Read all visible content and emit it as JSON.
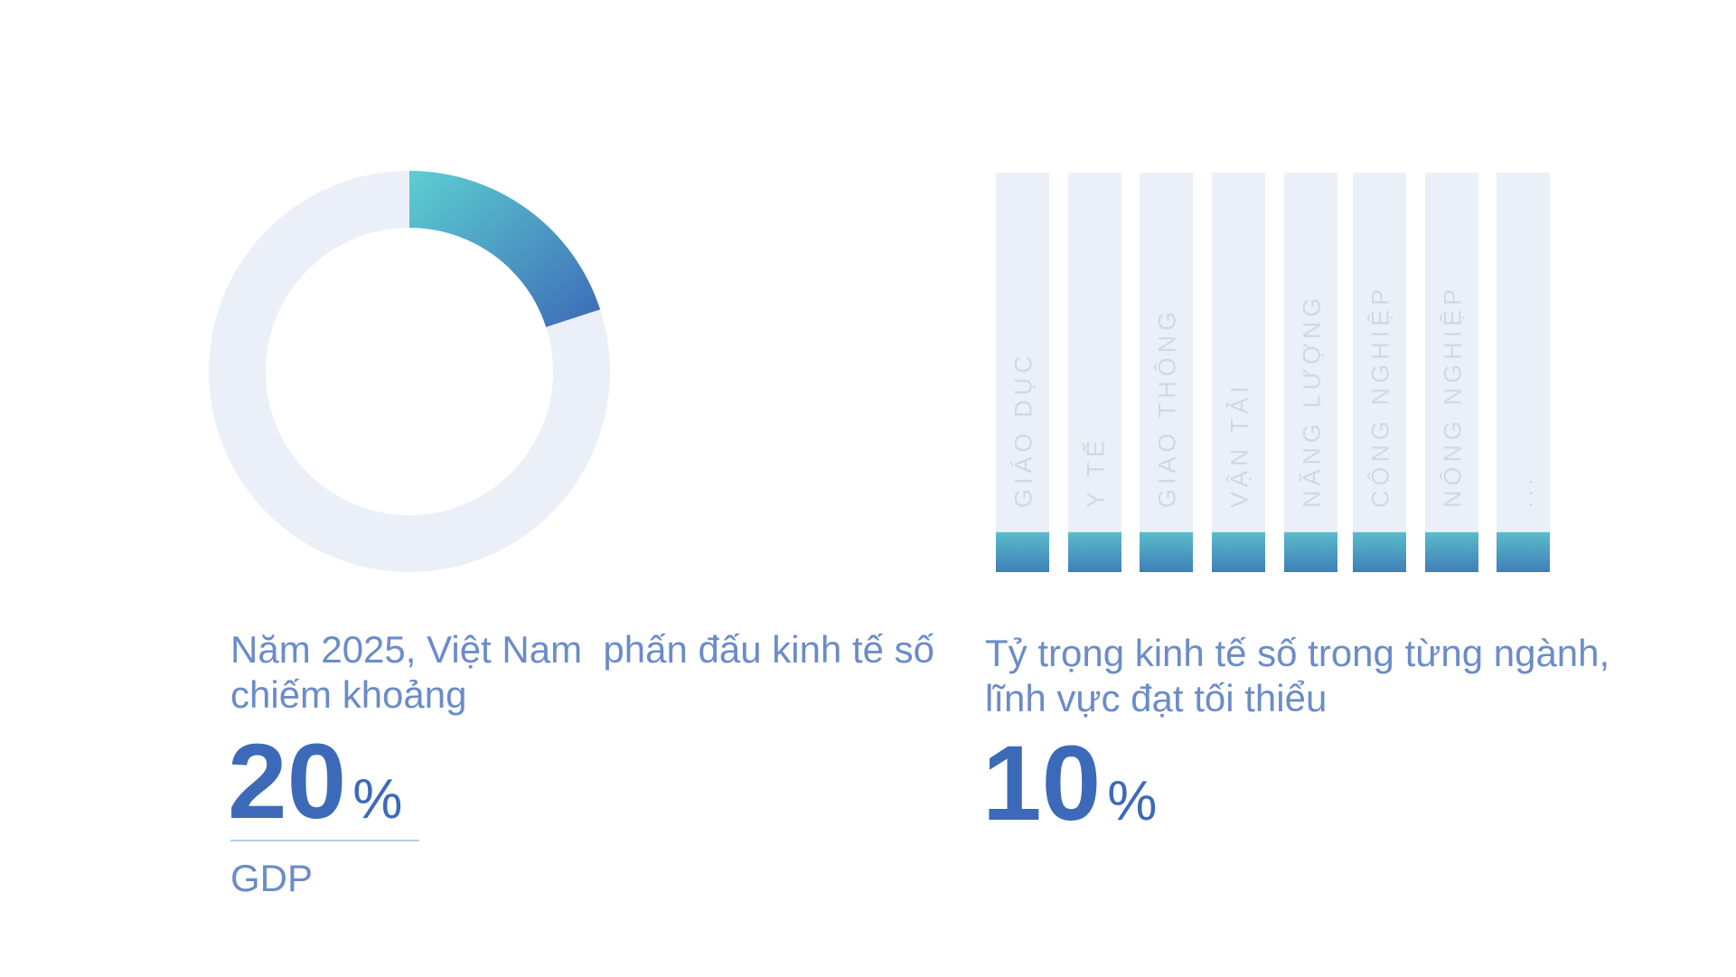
{
  "chart_data": [
    {
      "type": "donut",
      "description": [
        "Năm 2025, Việt Nam  phấn đấu kinh tế số",
        "chiếm khoảng"
      ],
      "values": [
        20
      ],
      "unit": "%",
      "caption": "GDP",
      "ylim": [
        0,
        100
      ],
      "track_color": "#ebf0f8",
      "colors": [
        "#5ccfd0",
        "#3d6ab8"
      ]
    },
    {
      "type": "bar",
      "description": [
        "Tỷ trọng kinh tế số trong từng ngành,",
        "lĩnh vực đạt tối thiểu"
      ],
      "headline": 10,
      "unit": "%",
      "categories": [
        "GIÁO DỤC",
        "Y TẾ",
        "GIAO THÔNG",
        "VẬN TẢI",
        "NĂNG LƯỢNG",
        "CÔNG NGHIỆP",
        "NÔNG NGHIỆP",
        "..."
      ],
      "values": [
        10,
        10,
        10,
        10,
        10,
        10,
        10,
        10
      ],
      "ylim": [
        0,
        100
      ],
      "track_color": "#ebf0f8",
      "colors": [
        "#5bbccb",
        "#3f7fb8"
      ]
    }
  ]
}
